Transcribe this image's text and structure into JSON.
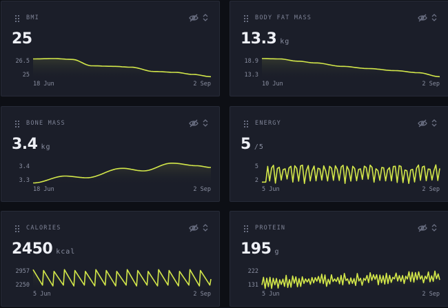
{
  "colors": {
    "accent": "#d4e84a",
    "background": "#0d0f15",
    "card": "#1b1e29",
    "muted": "#8a8fa1"
  },
  "icons": {
    "drag": "drag-handle-icon",
    "hide": "eye-off-icon",
    "sort": "chevron-up-down-icon"
  },
  "cards": [
    {
      "title": "BMI",
      "value": "25",
      "unit": "",
      "y_top": "26.5",
      "y_bottom": "25",
      "x_start": "18 Jun",
      "x_end": "2 Sep"
    },
    {
      "title": "BODY FAT MASS",
      "value": "13.3",
      "unit": "kg",
      "y_top": "18.9",
      "y_bottom": "13.3",
      "x_start": "10 Jun",
      "x_end": "2 Sep"
    },
    {
      "title": "BONE MASS",
      "value": "3.4",
      "unit": "kg",
      "y_top": "3.4",
      "y_bottom": "3.3",
      "x_start": "18 Jun",
      "x_end": "2 Sep"
    },
    {
      "title": "ENERGY",
      "value": "5",
      "unit": "/5",
      "y_top": "5",
      "y_bottom": "2",
      "x_start": "5 Jun",
      "x_end": "2 Sep"
    },
    {
      "title": "CALORIES",
      "value": "2450",
      "unit": "kcal",
      "y_top": "2957",
      "y_bottom": "2250",
      "x_start": "5 Jun",
      "x_end": "2 Sep"
    },
    {
      "title": "PROTEIN",
      "value": "195",
      "unit": "g",
      "y_top": "222",
      "y_bottom": "131",
      "x_start": "5 Jun",
      "x_end": "2 Sep"
    }
  ]
}
